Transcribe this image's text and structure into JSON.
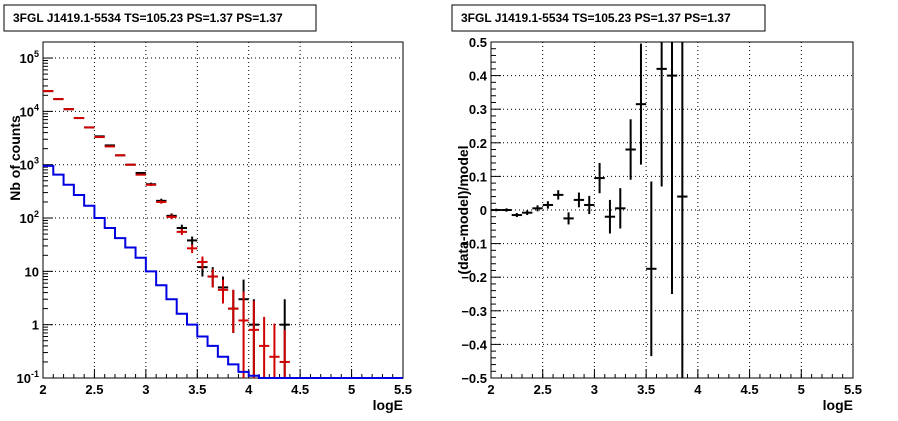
{
  "colors": {
    "data": "#000000",
    "model_total": "#d00000",
    "model_source": "#0000e0",
    "grid": "#000000"
  },
  "chart_data": [
    {
      "type": "line",
      "title": "3FGL J1419.1-5534 TS=105.23 PS=1.37 PS=1.37",
      "xlabel": "logE",
      "ylabel": "Nb of counts",
      "xlim": [
        2,
        5.5
      ],
      "ylim": [
        0.1,
        200000
      ],
      "yscale": "log",
      "grid": true,
      "x_ticks": [
        "2",
        "2.5",
        "3",
        "3.5",
        "4",
        "4.5",
        "5",
        "5.5"
      ],
      "y_ticks": [
        "10^-1",
        "1",
        "10",
        "10^2",
        "10^3",
        "10^4",
        "10^5"
      ],
      "bin_width": 0.1,
      "series": [
        {
          "style": "points",
          "color": "#000000",
          "x": [
            2.05,
            2.15,
            2.25,
            2.35,
            2.45,
            2.55,
            2.65,
            2.75,
            2.85,
            2.95,
            3.05,
            3.15,
            3.25,
            3.35,
            3.45,
            3.55,
            3.65,
            3.75,
            3.85,
            3.95,
            4.05,
            4.35
          ],
          "values": [
            24000,
            17000,
            11000,
            7500,
            5000,
            3400,
            2300,
            1500,
            1000,
            700,
            430,
            210,
            110,
            65,
            38,
            12,
            8,
            5,
            2,
            3,
            1,
            1
          ],
          "err_low": [
            0,
            0,
            0,
            0,
            0,
            0,
            0,
            0,
            0,
            0,
            30,
            20,
            12,
            10,
            7,
            4,
            3,
            2.5,
            1.3,
            2,
            0.9,
            0.9
          ],
          "err_high": [
            0,
            0,
            0,
            0,
            0,
            0,
            0,
            0,
            0,
            0,
            30,
            20,
            12,
            10,
            7,
            5,
            4,
            3,
            2.5,
            4,
            2,
            2
          ]
        },
        {
          "style": "points",
          "color": "#d00000",
          "x": [
            2.05,
            2.15,
            2.25,
            2.35,
            2.45,
            2.55,
            2.65,
            2.75,
            2.85,
            2.95,
            3.05,
            3.15,
            3.25,
            3.35,
            3.45,
            3.55,
            3.65,
            3.75,
            3.85,
            3.95,
            4.05,
            4.15,
            4.25,
            4.35
          ],
          "values": [
            24000,
            17000,
            11000,
            7500,
            5000,
            3300,
            2200,
            1500,
            1000,
            650,
            420,
            200,
            105,
            55,
            27,
            15,
            8,
            4.5,
            2,
            1.2,
            0.8,
            0.4,
            0.25,
            0.2
          ],
          "err_low": [
            0,
            0,
            0,
            0,
            0,
            0,
            0,
            0,
            0,
            0,
            20,
            14,
            10,
            7,
            5,
            4,
            3,
            2,
            1.3,
            1.1,
            0.7,
            0.3,
            0.15,
            0.1
          ],
          "err_high": [
            0,
            0,
            0,
            0,
            0,
            0,
            0,
            0,
            0,
            0,
            20,
            14,
            10,
            7,
            5,
            4,
            3,
            2.5,
            2.5,
            3,
            2,
            1,
            0.8,
            0.6
          ]
        },
        {
          "style": "step",
          "color": "#0000e0",
          "x": [
            2.05,
            2.15,
            2.25,
            2.35,
            2.45,
            2.55,
            2.65,
            2.75,
            2.85,
            2.95,
            3.05,
            3.15,
            3.25,
            3.35,
            3.45,
            3.55,
            3.65,
            3.75,
            3.85,
            3.95,
            4.05,
            4.15,
            4.25,
            4.35,
            4.45,
            4.55,
            4.65,
            4.75,
            4.85,
            4.95,
            5.05,
            5.15,
            5.25,
            5.35,
            5.45
          ],
          "values": [
            950,
            650,
            420,
            270,
            170,
            100,
            65,
            42,
            28,
            18,
            10,
            5.5,
            3,
            1.6,
            1,
            0.6,
            0.4,
            0.25,
            0.18,
            0.13,
            0.11,
            0.1,
            0.1,
            0.1,
            0.1,
            0.1,
            0.1,
            0.1,
            0.1,
            0.1,
            0.1,
            0.1,
            0.1,
            0.1,
            0.1
          ]
        }
      ]
    },
    {
      "type": "scatter",
      "title": "3FGL J1419.1-5534 TS=105.23 PS=1.37 PS=1.37",
      "xlabel": "logE",
      "ylabel": "(data-model)/model",
      "xlim": [
        2,
        5.5
      ],
      "ylim": [
        -0.5,
        0.5
      ],
      "grid": true,
      "x_ticks": [
        "2",
        "2.5",
        "3",
        "3.5",
        "4",
        "4.5",
        "5",
        "5.5"
      ],
      "y_ticks": [
        "−0.5",
        "−0.4",
        "−0.3",
        "−0.2",
        "−0.1",
        "0",
        "0.1",
        "0.2",
        "0.3",
        "0.4",
        "0.5"
      ],
      "bin_width": 0.1,
      "series": [
        {
          "color": "#000000",
          "x": [
            2.05,
            2.15,
            2.25,
            2.35,
            2.45,
            2.55,
            2.65,
            2.75,
            2.85,
            2.95,
            3.05,
            3.15,
            3.25,
            3.35,
            3.45,
            3.55,
            3.65,
            3.75,
            3.85
          ],
          "values": [
            0,
            0,
            -0.015,
            -0.008,
            0.005,
            0.015,
            0.045,
            -0.025,
            0.03,
            0.015,
            0.095,
            -0.02,
            0.005,
            0.18,
            0.315,
            -0.175,
            0.42,
            0.4,
            0.04
          ],
          "err": [
            0.004,
            0.005,
            0.006,
            0.007,
            0.009,
            0.011,
            0.014,
            0.018,
            0.022,
            0.027,
            0.045,
            0.05,
            0.06,
            0.09,
            0.18,
            0.26,
            0.35,
            0.65,
            0.6
          ]
        }
      ]
    }
  ]
}
